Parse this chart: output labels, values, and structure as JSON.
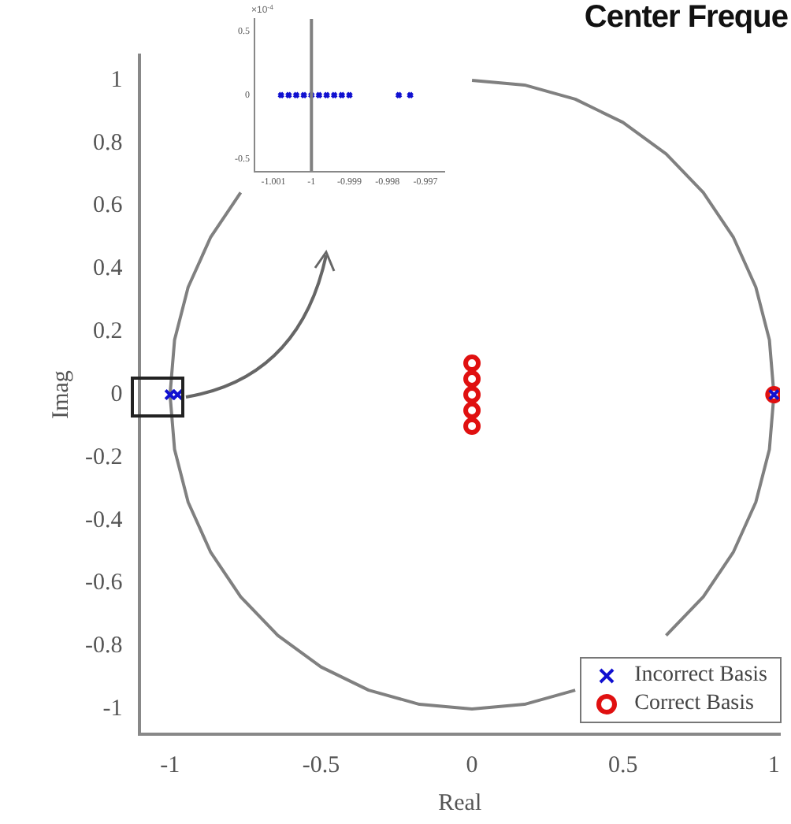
{
  "chart_data": [
    {
      "type": "scatter",
      "title": "Center Freque",
      "xlabel": "Real",
      "ylabel": "Imag",
      "xlim": [
        -1.1,
        1.02
      ],
      "ylim": [
        -1.08,
        1.08
      ],
      "xticks": [
        -1,
        -0.5,
        0,
        0.5,
        1
      ],
      "yticks": [
        -1,
        -0.8,
        -0.6,
        -0.4,
        -0.2,
        0,
        0.2,
        0.4,
        0.6,
        0.8,
        1
      ],
      "grid": false,
      "legend": "bottom right",
      "series": [
        {
          "type": "line",
          "color": "#808080",
          "marker": "none",
          "x": [
            1,
            0.985,
            0.94,
            0.866,
            0.766,
            0.643,
            0.5,
            0.342,
            0.174,
            0,
            -0.174,
            -0.342,
            -0.5,
            -0.643,
            -0.766,
            -0.866,
            -0.94,
            -0.985,
            -1,
            -0.985,
            -0.94,
            -0.866,
            -0.766,
            -0.643,
            -0.5,
            -0.342,
            -0.174,
            0,
            0.174,
            0.342,
            0.5,
            0.643,
            0.766,
            0.866,
            0.94,
            0.985,
            1
          ],
          "values": [
            0,
            0.174,
            0.342,
            0.5,
            0.643,
            0.766,
            0.866,
            0.94,
            0.985,
            1,
            null,
            null,
            null,
            null,
            0.643,
            0.5,
            0.342,
            0.174,
            0,
            -0.174,
            -0.342,
            -0.5,
            -0.643,
            -0.766,
            -0.866,
            -0.94,
            -0.985,
            -1,
            -0.985,
            -0.94,
            null,
            -0.766,
            -0.643,
            -0.5,
            -0.342,
            -0.174,
            0
          ]
        },
        {
          "name": "Incorrect Basis",
          "color": "#1010d0",
          "marker": "cross",
          "x": [
            -1,
            -0.975,
            1
          ],
          "values": [
            0,
            0,
            0
          ]
        },
        {
          "name": "Correct Basis",
          "color": "#e01010",
          "marker": "circle",
          "x": [
            0,
            0,
            0,
            0,
            0,
            1
          ],
          "values": [
            0.1,
            0.05,
            0,
            -0.05,
            -0.1,
            0
          ]
        }
      ]
    },
    {
      "type": "scatter",
      "xlim": [
        -1.0015,
        -0.9965
      ],
      "ylim": [
        -0.6,
        0.6
      ],
      "xticks": [
        -1.001,
        -1,
        -0.999,
        -0.998,
        -0.997
      ],
      "yticks": [
        0.5,
        0,
        -0.5
      ],
      "annotations": [
        "×10$^{-4}$"
      ],
      "grid": false,
      "ref_lines": [
        {
          "axis": "x",
          "value": -1,
          "color": "#808080"
        }
      ],
      "series": [
        {
          "color": "#1010d0",
          "marker": "cross",
          "x": [
            -1.0008,
            -1.0006,
            -1.0004,
            -1.0002,
            -1,
            -0.9998,
            -0.9996,
            -0.9994,
            -0.9992,
            -0.999,
            -0.9977,
            -0.9974
          ],
          "values": [
            0,
            0,
            0,
            0,
            0,
            0,
            0,
            0,
            0,
            0,
            0,
            0
          ]
        }
      ]
    }
  ]
}
